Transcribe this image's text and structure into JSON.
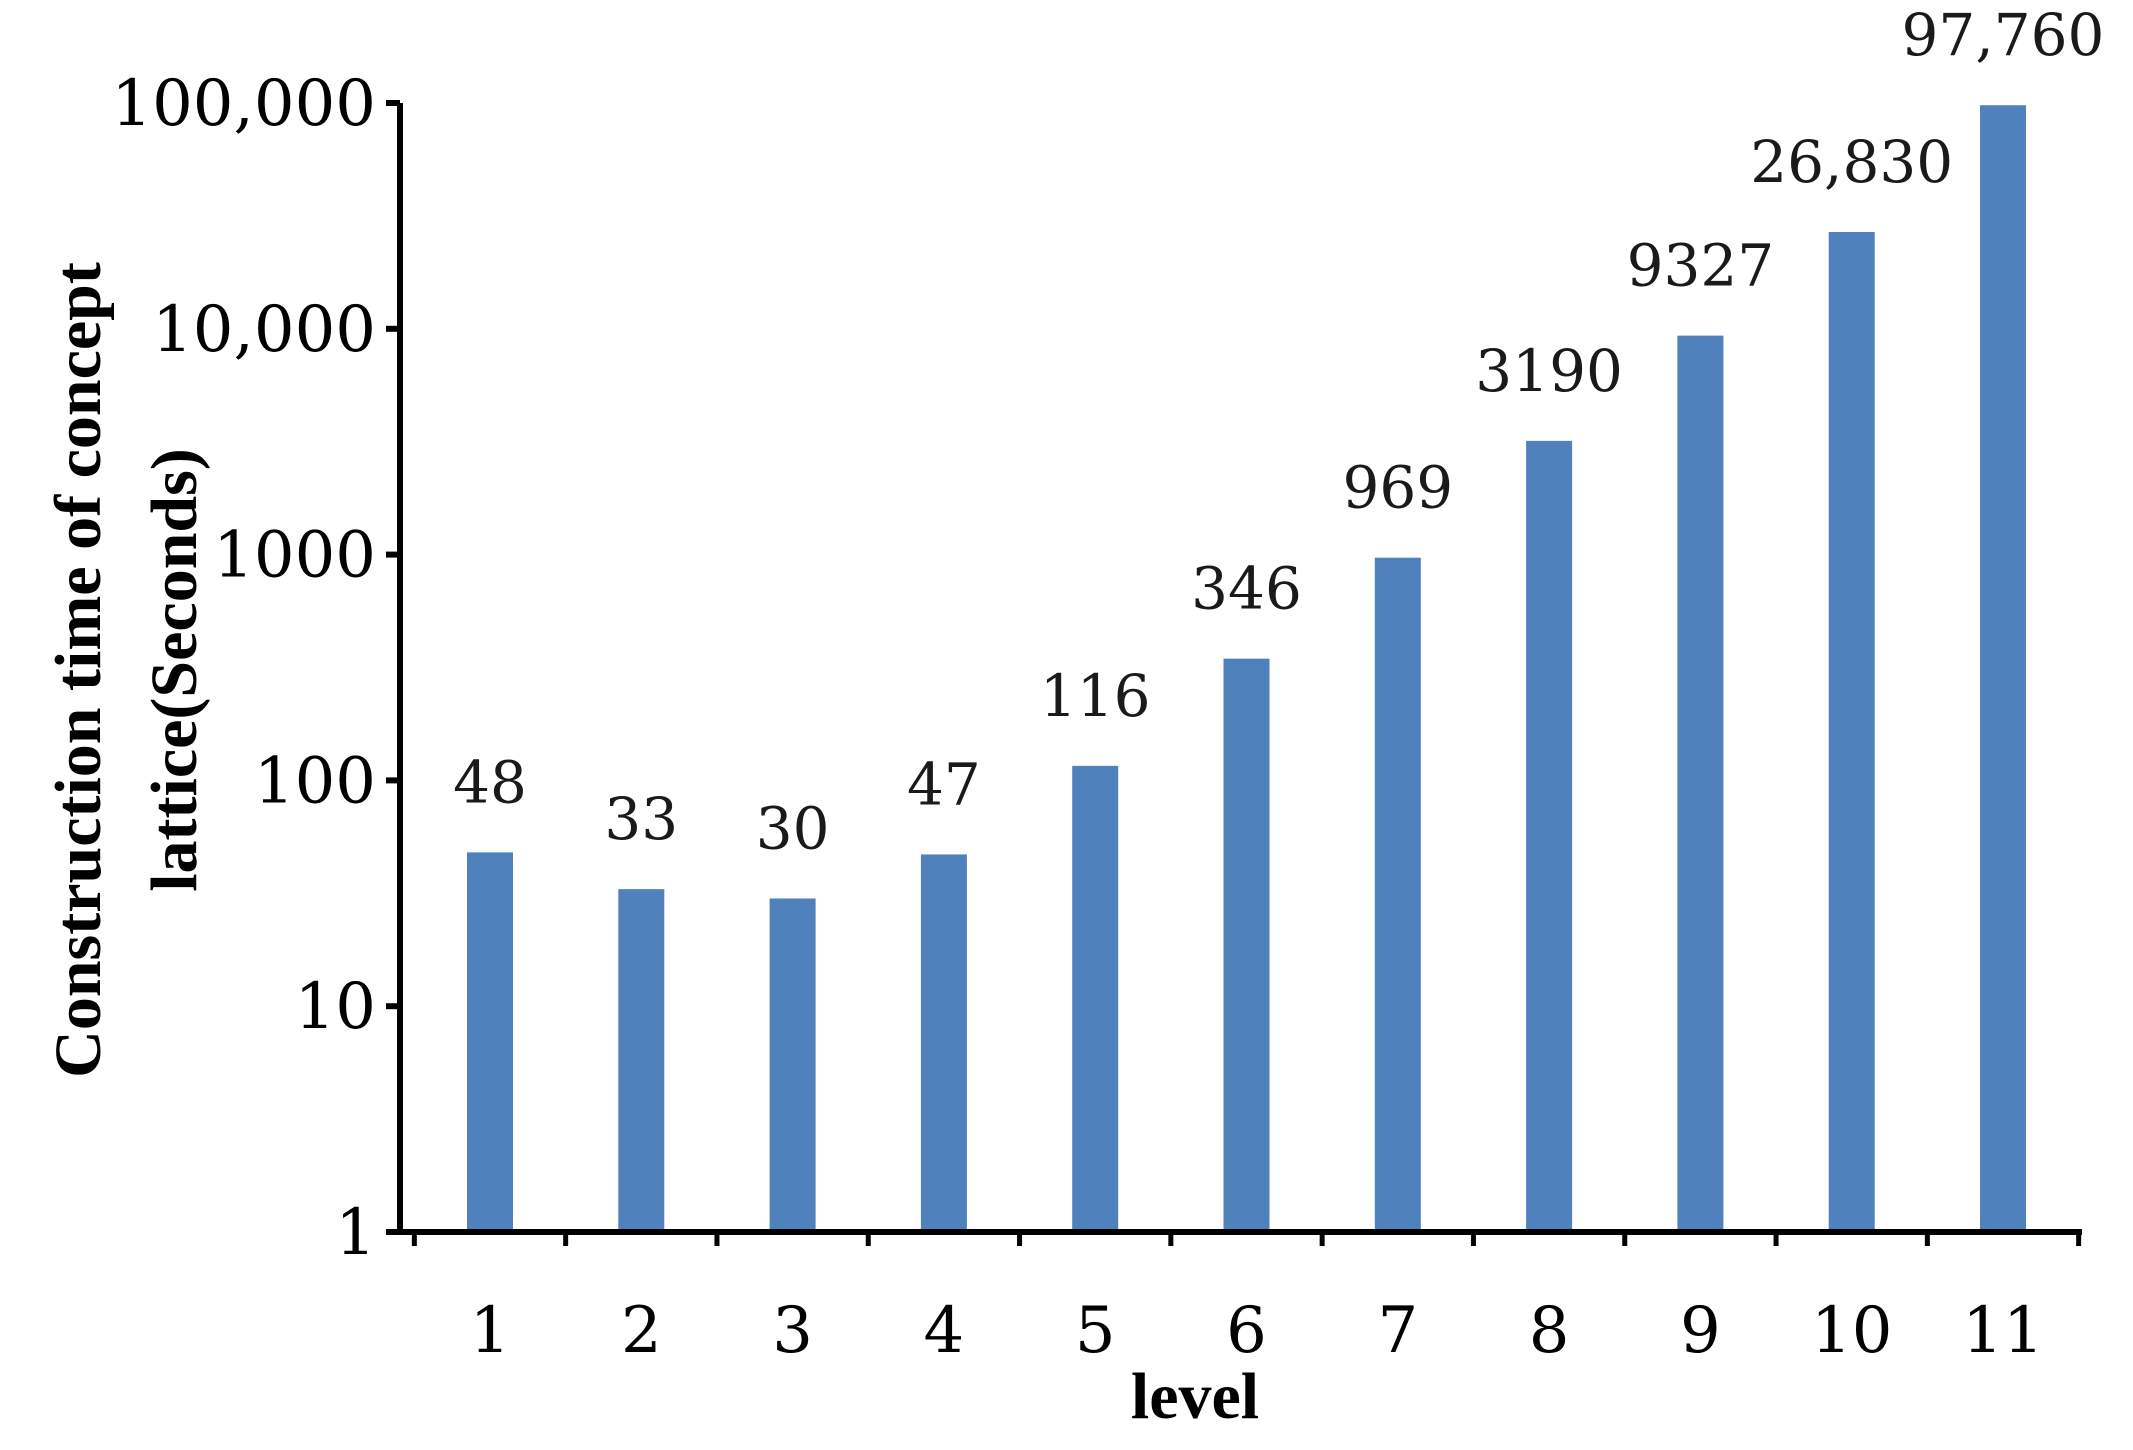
{
  "chart_data": {
    "type": "bar",
    "y_scale": "log10",
    "categories": [
      "1",
      "2",
      "3",
      "4",
      "5",
      "6",
      "7",
      "8",
      "9",
      "10",
      "11"
    ],
    "values": [
      48,
      33,
      30,
      47,
      116,
      346,
      969,
      3190,
      9327,
      26830,
      97760
    ],
    "value_labels": [
      "48",
      "33",
      "30",
      "47",
      "116",
      "346",
      "969",
      "3190",
      "9327",
      "26,830",
      "97,760"
    ],
    "ylim": [
      1,
      100000
    ],
    "y_ticks": [
      1,
      10,
      100,
      1000,
      10000,
      100000
    ],
    "y_tick_labels": [
      "1",
      "10",
      "100",
      "1000",
      "10,000",
      "100,000"
    ],
    "xlabel": "level",
    "ylabel_lines": [
      "Construction time of concept",
      "lattice(Seconds)"
    ],
    "bar_color": "#4f81bd",
    "grid": false,
    "legend": "none"
  }
}
